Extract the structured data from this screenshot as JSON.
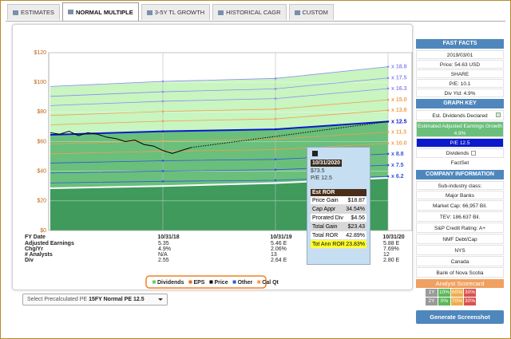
{
  "tabs": [
    "ESTIMATES",
    "NORMAL MULTIPLE",
    "3-5Y TL GROWTH",
    "HISTORICAL CAGR",
    "CUSTOM"
  ],
  "chart_data": [
    {
      "type": "line",
      "categories": [
        null,
        "10/31/18",
        "10/31/19",
        "10/31/20"
      ],
      "x_label": "FY Date",
      "ylim": [
        0,
        120
      ],
      "yticks": [
        {
          "value": 0,
          "label": "$0"
        },
        {
          "value": 20,
          "label": "$20"
        },
        {
          "value": 40,
          "label": "$40"
        },
        {
          "value": 60,
          "label": "$60"
        },
        {
          "value": 80,
          "label": "$80"
        },
        {
          "value": 100,
          "label": "$100"
        },
        {
          "value": 120,
          "label": "$120"
        }
      ],
      "grid": true,
      "series": [
        {
          "name": "x 18.8",
          "color": "#8c8cf0",
          "values": [
            97.2,
            100.6,
            102.6,
            110.5
          ]
        },
        {
          "name": "x 17.5",
          "color": "#8c8cf0",
          "values": [
            90.5,
            93.6,
            95.6,
            102.9
          ]
        },
        {
          "name": "x 16.3",
          "color": "#8c8cf0",
          "values": [
            84.3,
            87.2,
            89.0,
            95.8
          ]
        },
        {
          "name": "x 15.0",
          "color": "#f0a050",
          "values": [
            77.6,
            80.3,
            81.9,
            88.2
          ]
        },
        {
          "name": "x 13.8",
          "color": "#f0a050",
          "values": [
            71.3,
            73.8,
            75.3,
            81.1
          ]
        },
        {
          "name": "x 12.5",
          "color": "#0a1acc",
          "values": [
            64.6,
            66.9,
            68.3,
            73.5
          ]
        },
        {
          "name": "x 11.3",
          "color": "#f0a050",
          "values": [
            58.4,
            60.5,
            61.7,
            66.4
          ]
        },
        {
          "name": "x 10.0",
          "color": "#f0a050",
          "values": [
            51.7,
            53.5,
            54.6,
            58.8
          ]
        },
        {
          "name": "x 8.8",
          "color": "#3355dd",
          "values": [
            45.5,
            47.1,
            48.0,
            51.7
          ]
        },
        {
          "name": "x 7.5",
          "color": "#3355dd",
          "values": [
            38.8,
            40.1,
            41.0,
            44.1
          ]
        },
        {
          "name": "x 6.2",
          "color": "#3355dd",
          "values": [
            32.1,
            33.2,
            33.9,
            36.5
          ]
        }
      ],
      "dividends": {
        "color": "#ffffff",
        "values": [
          28.5,
          30.0,
          32.0,
          35.5
        ]
      },
      "legend": [
        {
          "name": "Dividends",
          "color": "#66cc66"
        },
        {
          "name": "EPS",
          "color": "#e07020"
        },
        {
          "name": "Price",
          "color": "#000000"
        },
        {
          "name": "Other",
          "color": "#3355dd"
        },
        {
          "name": "Cal Qt",
          "color": "#f0a050"
        }
      ]
    },
    {
      "type": "line",
      "categories": [
        null,
        null,
        null,
        null,
        null,
        null,
        null,
        null,
        null,
        null,
        null,
        null,
        null,
        null,
        null,
        null
      ],
      "series": [
        {
          "color": "#000000",
          "values": [
            66,
            65,
            67,
            64,
            66,
            65,
            63,
            62,
            60,
            61,
            58,
            57,
            54,
            52,
            54,
            56
          ]
        }
      ]
    }
  ],
  "table": {
    "row_labels": [
      "Adjusted Earnings",
      "Chg/Yr",
      "# Analysts",
      "Div"
    ],
    "columns": [
      [
        "5.35",
        "4.9%",
        "N/A",
        "2.55"
      ],
      [
        "5.46 E",
        "2.06%",
        "13",
        "2.64 E"
      ],
      [
        "5.88 E",
        "7.69%",
        "12",
        "2.80 E"
      ]
    ]
  },
  "tooltip": {
    "date": "10/31/2020",
    "price": "$73.5",
    "pe": "P/E 12.5",
    "header": "Est ROR",
    "rows": [
      [
        "Price Gain",
        "$18.87"
      ],
      [
        "Cap Appr",
        "34.54%"
      ],
      [
        "Prorated Div",
        "$4.56"
      ],
      [
        "Total Gain",
        "$23.43"
      ],
      [
        "Total ROR",
        "42.89%"
      ],
      [
        "Tot Ann ROR",
        "23.83%"
      ]
    ]
  },
  "select": {
    "label": "Select Precalculated PE",
    "value": "15FY Normal PE 12.5"
  },
  "sidebar": {
    "fast_facts": {
      "title": "FAST FACTS",
      "items": [
        "2019/03/01",
        "Price: 54.63 USD",
        "SHARE",
        "P/E: 10.1",
        "Div Yld: 4.9%"
      ]
    },
    "graph_key": {
      "title": "GRAPH KEY",
      "items": [
        {
          "label": "Est. Dividends Declared",
          "color": "#c8f5c0"
        },
        {
          "label": "Estimated Adjusted Earnings Growth 4.9%",
          "color": "#6abf7b"
        },
        {
          "label": "P/E 12.5",
          "color": "#0a1acc"
        },
        {
          "label": "Dividends",
          "color": "#ffffff"
        }
      ],
      "source": "FactSet"
    },
    "company": {
      "title": "COMPANY INFORMATION",
      "items": [
        "Sub-industry class:",
        "Major Banks",
        "Market Cap: 66,957 Bil.",
        "TEV: 186.637 Bil.",
        "S&P Credit Rating: A+",
        "NMF Debt/Cap",
        "NYS",
        "Canada",
        "Bank of Nova Scotia"
      ]
    },
    "scorecard": {
      "title": "Analyst Scorecard",
      "rows": [
        [
          "1Y",
          "10%",
          "60%",
          "30%"
        ],
        [
          "2Y",
          "0%",
          "70%",
          "30%"
        ]
      ]
    },
    "button": "Generate Screenshot"
  }
}
